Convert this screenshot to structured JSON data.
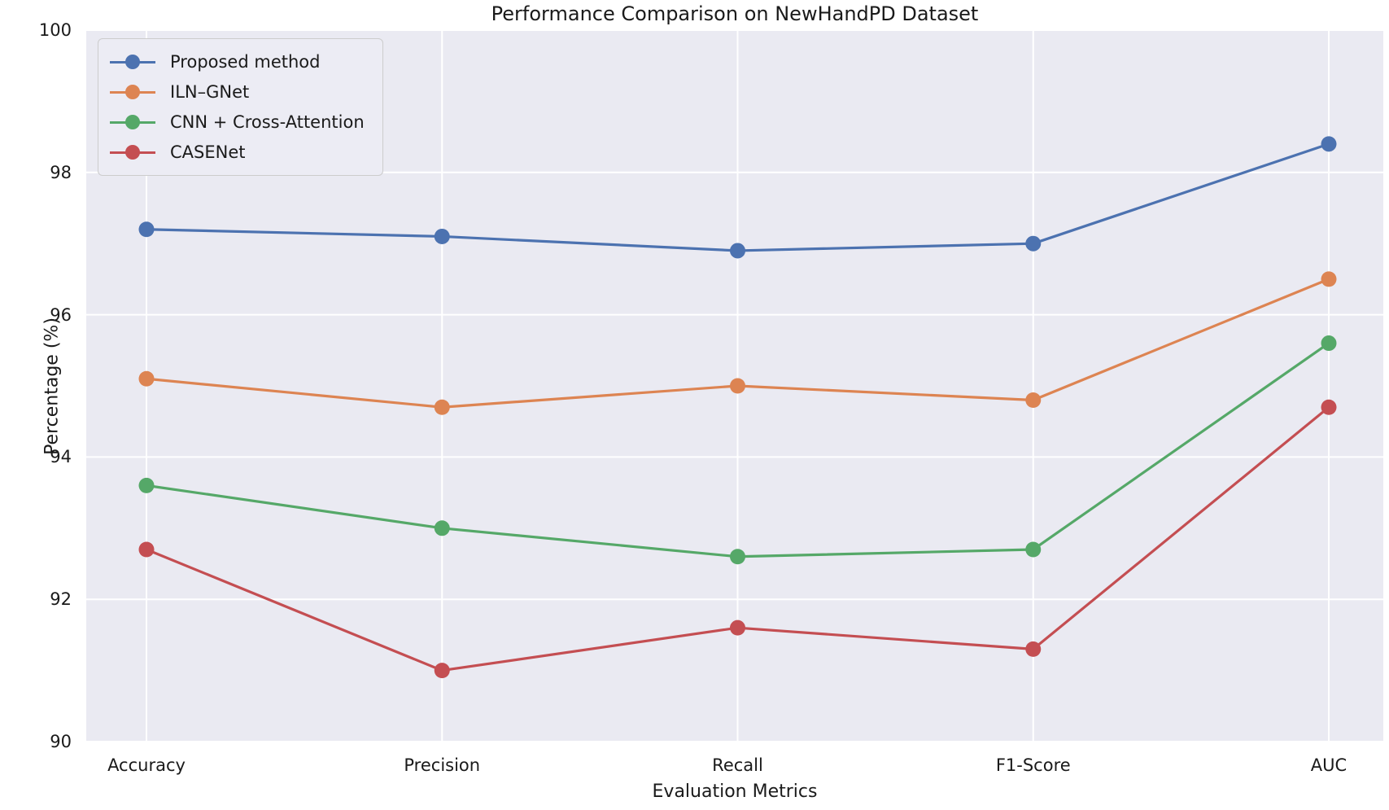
{
  "chart_data": {
    "type": "line",
    "title": "Performance Comparison on NewHandPD Dataset",
    "xlabel": "Evaluation Metrics",
    "ylabel": "Percentage (%)",
    "categories": [
      "Accuracy",
      "Precision",
      "Recall",
      "F1-Score",
      "AUC"
    ],
    "series": [
      {
        "name": "Proposed method",
        "color": "#4C72B0",
        "values": [
          97.2,
          97.1,
          96.9,
          97.0,
          98.4
        ]
      },
      {
        "name": "ILN–GNet",
        "color": "#DD8452",
        "values": [
          95.1,
          94.7,
          95.0,
          94.8,
          96.5
        ]
      },
      {
        "name": "CNN + Cross-Attention",
        "color": "#55A868",
        "values": [
          93.6,
          93.0,
          92.6,
          92.7,
          95.6
        ]
      },
      {
        "name": "CASENet",
        "color": "#C44E52",
        "values": [
          92.7,
          91.0,
          91.6,
          91.3,
          94.7
        ]
      }
    ],
    "ylim": [
      90,
      100
    ],
    "yticks": [
      90,
      92,
      94,
      96,
      98,
      100
    ],
    "grid": true,
    "legend_position": "upper left",
    "plot_bg_color": "#EAEAF2",
    "grid_color": "#FFFFFF"
  }
}
